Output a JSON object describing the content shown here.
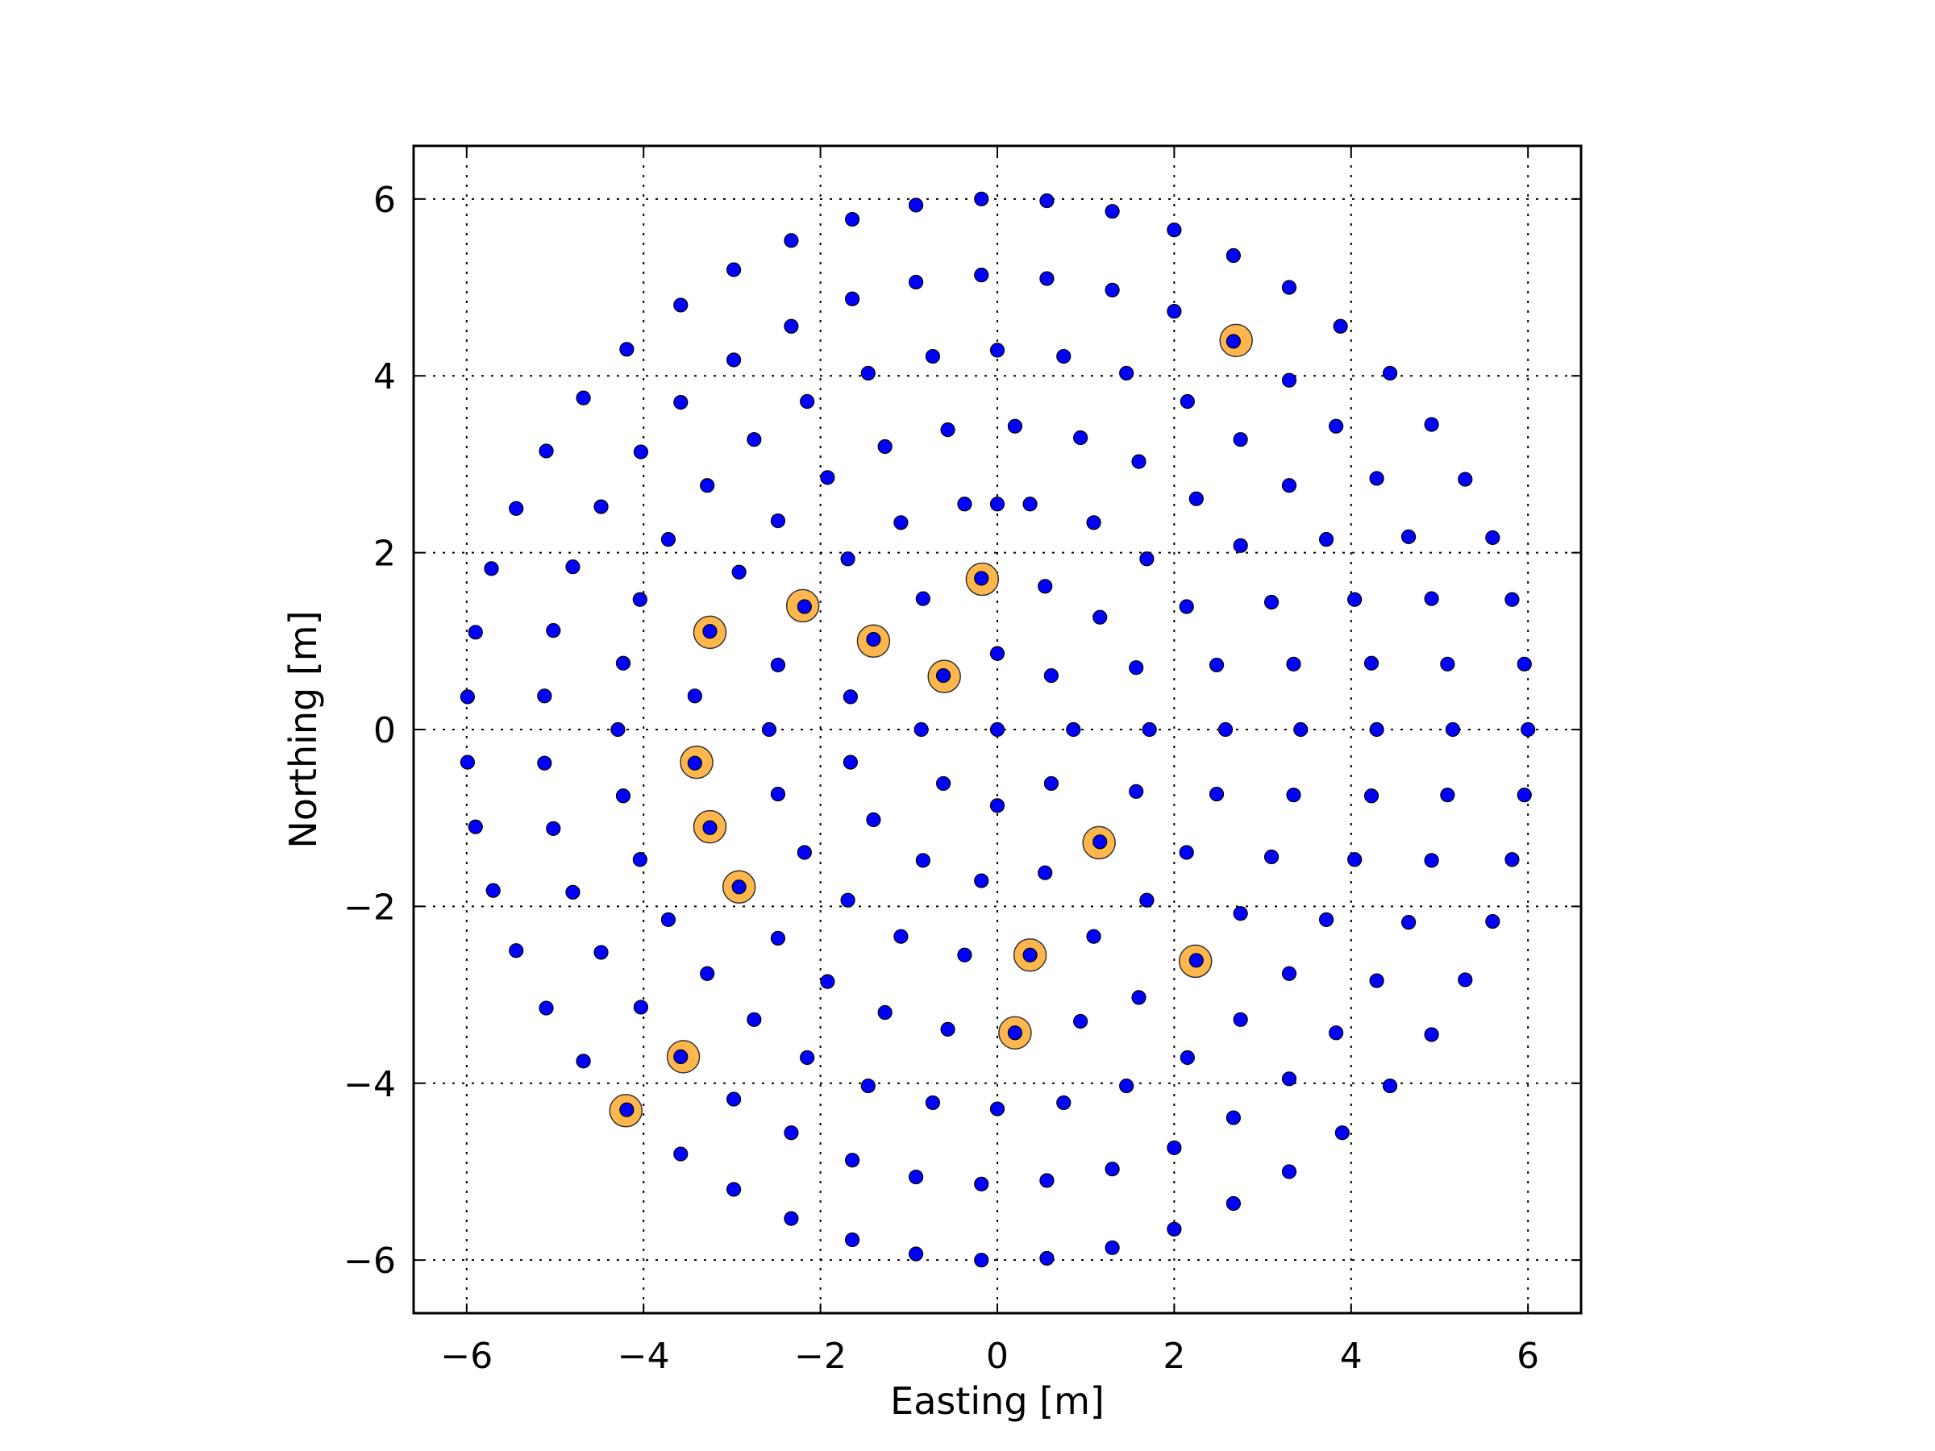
{
  "chart_data": {
    "type": "scatter",
    "title": "",
    "xlabel": "Easting [m]",
    "ylabel": "Northing [m]",
    "xlim": [
      -6.6,
      6.6
    ],
    "ylim": [
      -6.6,
      6.6
    ],
    "xticks": [
      -6,
      -4,
      -2,
      0,
      2,
      4,
      6
    ],
    "yticks": [
      -6,
      -4,
      -2,
      0,
      2,
      4,
      6
    ],
    "xtick_labels": [
      "−6",
      "−4",
      "−2",
      "0",
      "2",
      "4",
      "6"
    ],
    "ytick_labels": [
      "−6",
      "−4",
      "−2",
      "0",
      "2",
      "4",
      "6"
    ],
    "grid": true,
    "aspect": "equal",
    "series": [
      {
        "color": "#0000ff",
        "marker": "small-dot",
        "points": [
          [
            -0.18,
            6.0
          ],
          [
            0.56,
            5.98
          ],
          [
            1.3,
            5.86
          ],
          [
            2.0,
            5.65
          ],
          [
            2.67,
            5.36
          ],
          [
            3.3,
            5.0
          ],
          [
            3.88,
            4.56
          ],
          [
            4.44,
            4.03
          ],
          [
            4.91,
            3.45
          ],
          [
            5.29,
            2.83
          ],
          [
            5.6,
            2.17
          ],
          [
            5.82,
            1.47
          ],
          [
            5.96,
            0.74
          ],
          [
            6.0,
            0.0
          ],
          [
            5.96,
            -0.74
          ],
          [
            5.82,
            -1.47
          ],
          [
            5.6,
            -2.17
          ],
          [
            5.29,
            -2.83
          ],
          [
            4.91,
            -3.45
          ],
          [
            4.44,
            -4.03
          ],
          [
            3.9,
            -4.56
          ],
          [
            3.3,
            -5.0
          ],
          [
            2.67,
            -5.36
          ],
          [
            2.0,
            -5.65
          ],
          [
            1.3,
            -5.86
          ],
          [
            0.56,
            -5.98
          ],
          [
            -0.18,
            -6.0
          ],
          [
            -0.92,
            -5.93
          ],
          [
            -1.64,
            -5.77
          ],
          [
            -2.33,
            -5.53
          ],
          [
            -2.98,
            -5.2
          ],
          [
            -3.58,
            -4.8
          ],
          [
            -4.19,
            -4.3
          ],
          [
            -4.68,
            -3.75
          ],
          [
            -5.1,
            -3.15
          ],
          [
            -5.44,
            -2.5
          ],
          [
            -5.7,
            -1.82
          ],
          [
            -5.9,
            -1.1
          ],
          [
            -5.99,
            -0.37
          ],
          [
            -5.99,
            0.37
          ],
          [
            -5.9,
            1.1
          ],
          [
            -5.72,
            1.82
          ],
          [
            -5.44,
            2.5
          ],
          [
            -5.1,
            3.15
          ],
          [
            -4.68,
            3.75
          ],
          [
            -4.19,
            4.3
          ],
          [
            -3.58,
            4.8
          ],
          [
            -2.98,
            5.2
          ],
          [
            -2.33,
            5.53
          ],
          [
            -1.64,
            5.77
          ],
          [
            -0.92,
            5.93
          ],
          [
            -0.18,
            5.14
          ],
          [
            0.56,
            5.1
          ],
          [
            1.3,
            4.97
          ],
          [
            2.0,
            4.73
          ],
          [
            2.67,
            4.39
          ],
          [
            3.3,
            3.95
          ],
          [
            3.83,
            3.43
          ],
          [
            4.29,
            2.84
          ],
          [
            4.65,
            2.18
          ],
          [
            4.91,
            1.48
          ],
          [
            5.09,
            0.74
          ],
          [
            5.15,
            0.0
          ],
          [
            5.09,
            -0.74
          ],
          [
            4.91,
            -1.48
          ],
          [
            4.65,
            -2.18
          ],
          [
            4.29,
            -2.84
          ],
          [
            3.83,
            -3.43
          ],
          [
            3.3,
            -3.95
          ],
          [
            2.67,
            -4.39
          ],
          [
            2.0,
            -4.73
          ],
          [
            1.3,
            -4.97
          ],
          [
            0.56,
            -5.1
          ],
          [
            -0.18,
            -5.14
          ],
          [
            -0.92,
            -5.06
          ],
          [
            -1.64,
            -4.87
          ],
          [
            -2.33,
            -4.56
          ],
          [
            -2.98,
            -4.18
          ],
          [
            -3.58,
            -3.7
          ],
          [
            -4.03,
            -3.14
          ],
          [
            -4.48,
            -2.52
          ],
          [
            -4.8,
            -1.84
          ],
          [
            -5.02,
            -1.12
          ],
          [
            -5.12,
            -0.38
          ],
          [
            -5.12,
            0.38
          ],
          [
            -5.02,
            1.12
          ],
          [
            -4.8,
            1.84
          ],
          [
            -4.48,
            2.52
          ],
          [
            -4.03,
            3.14
          ],
          [
            -3.58,
            3.7
          ],
          [
            -2.98,
            4.18
          ],
          [
            -2.33,
            4.56
          ],
          [
            -1.64,
            4.87
          ],
          [
            -0.92,
            5.06
          ],
          [
            0.0,
            4.29
          ],
          [
            0.75,
            4.22
          ],
          [
            1.46,
            4.03
          ],
          [
            2.15,
            3.71
          ],
          [
            2.75,
            3.28
          ],
          [
            3.3,
            2.76
          ],
          [
            3.72,
            2.15
          ],
          [
            4.04,
            1.47
          ],
          [
            4.23,
            0.75
          ],
          [
            4.29,
            0.0
          ],
          [
            4.23,
            -0.75
          ],
          [
            4.04,
            -1.47
          ],
          [
            3.72,
            -2.15
          ],
          [
            3.3,
            -2.76
          ],
          [
            2.75,
            -3.28
          ],
          [
            2.15,
            -3.71
          ],
          [
            1.46,
            -4.03
          ],
          [
            0.75,
            -4.22
          ],
          [
            0.0,
            -4.29
          ],
          [
            -0.73,
            -4.22
          ],
          [
            -1.46,
            -4.03
          ],
          [
            -2.15,
            -3.71
          ],
          [
            -2.75,
            -3.28
          ],
          [
            -3.28,
            -2.76
          ],
          [
            -3.72,
            -2.15
          ],
          [
            -4.04,
            -1.47
          ],
          [
            -4.23,
            -0.75
          ],
          [
            -4.29,
            0.0
          ],
          [
            -4.23,
            0.75
          ],
          [
            -4.04,
            1.47
          ],
          [
            -3.72,
            2.15
          ],
          [
            -3.28,
            2.76
          ],
          [
            -2.75,
            3.28
          ],
          [
            -2.15,
            3.71
          ],
          [
            -1.46,
            4.03
          ],
          [
            -0.73,
            4.22
          ],
          [
            -0.56,
            3.39
          ],
          [
            0.2,
            3.43
          ],
          [
            0.94,
            3.3
          ],
          [
            1.6,
            3.03
          ],
          [
            2.25,
            2.61
          ],
          [
            2.75,
            2.08
          ],
          [
            3.1,
            1.44
          ],
          [
            3.35,
            0.74
          ],
          [
            3.43,
            0.0
          ],
          [
            3.35,
            -0.74
          ],
          [
            3.1,
            -1.44
          ],
          [
            2.75,
            -2.08
          ],
          [
            2.25,
            -2.61
          ],
          [
            1.6,
            -3.03
          ],
          [
            0.94,
            -3.3
          ],
          [
            0.2,
            -3.43
          ],
          [
            -0.56,
            -3.39
          ],
          [
            -1.27,
            -3.2
          ],
          [
            -1.92,
            -2.85
          ],
          [
            -2.48,
            -2.36
          ],
          [
            -2.92,
            -1.78
          ],
          [
            -3.25,
            -1.11
          ],
          [
            -3.42,
            -0.38
          ],
          [
            -3.42,
            0.38
          ],
          [
            -3.25,
            1.11
          ],
          [
            -2.92,
            1.78
          ],
          [
            -2.48,
            2.36
          ],
          [
            -1.92,
            2.85
          ],
          [
            -1.27,
            3.2
          ],
          [
            0.0,
            2.55
          ],
          [
            0.37,
            2.55
          ],
          [
            1.09,
            2.34
          ],
          [
            1.69,
            1.93
          ],
          [
            2.14,
            1.39
          ],
          [
            2.48,
            0.73
          ],
          [
            2.58,
            0.0
          ],
          [
            2.48,
            -0.73
          ],
          [
            2.14,
            -1.39
          ],
          [
            1.69,
            -1.93
          ],
          [
            1.09,
            -2.34
          ],
          [
            0.37,
            -2.55
          ],
          [
            -0.37,
            -2.55
          ],
          [
            -1.09,
            -2.34
          ],
          [
            -1.69,
            -1.93
          ],
          [
            -2.18,
            -1.39
          ],
          [
            -2.48,
            -0.73
          ],
          [
            -2.58,
            0.0
          ],
          [
            -2.48,
            0.73
          ],
          [
            -2.18,
            1.39
          ],
          [
            -1.69,
            1.93
          ],
          [
            -1.09,
            2.34
          ],
          [
            -0.37,
            2.55
          ],
          [
            -0.18,
            1.71
          ],
          [
            0.54,
            1.62
          ],
          [
            1.16,
            1.27
          ],
          [
            1.57,
            0.7
          ],
          [
            1.72,
            0.0
          ],
          [
            1.57,
            -0.7
          ],
          [
            1.16,
            -1.27
          ],
          [
            0.54,
            -1.62
          ],
          [
            -0.18,
            -1.71
          ],
          [
            -0.84,
            -1.48
          ],
          [
            -1.4,
            -1.02
          ],
          [
            -1.66,
            -0.37
          ],
          [
            -1.66,
            0.37
          ],
          [
            -1.4,
            1.02
          ],
          [
            -0.84,
            1.48
          ],
          [
            0.0,
            0.86
          ],
          [
            0.61,
            0.61
          ],
          [
            0.86,
            0.0
          ],
          [
            0.61,
            -0.61
          ],
          [
            0.0,
            -0.86
          ],
          [
            -0.61,
            -0.61
          ],
          [
            -0.86,
            0.0
          ],
          [
            -0.61,
            0.61
          ],
          [
            0.0,
            0.0
          ]
        ]
      },
      {
        "color": "#ffb74d",
        "marker": "large-ring",
        "points": [
          [
            2.7,
            4.4
          ],
          [
            -2.2,
            1.4
          ],
          [
            -3.25,
            1.1
          ],
          [
            -1.4,
            1.0
          ],
          [
            -0.17,
            1.7
          ],
          [
            -0.6,
            0.6
          ],
          [
            -3.4,
            -0.37
          ],
          [
            -3.25,
            -1.1
          ],
          [
            -2.92,
            -1.78
          ],
          [
            1.15,
            -1.28
          ],
          [
            0.37,
            -2.55
          ],
          [
            2.24,
            -2.62
          ],
          [
            0.2,
            -3.43
          ],
          [
            -3.55,
            -3.7
          ],
          [
            -4.2,
            -4.31
          ]
        ]
      }
    ]
  }
}
